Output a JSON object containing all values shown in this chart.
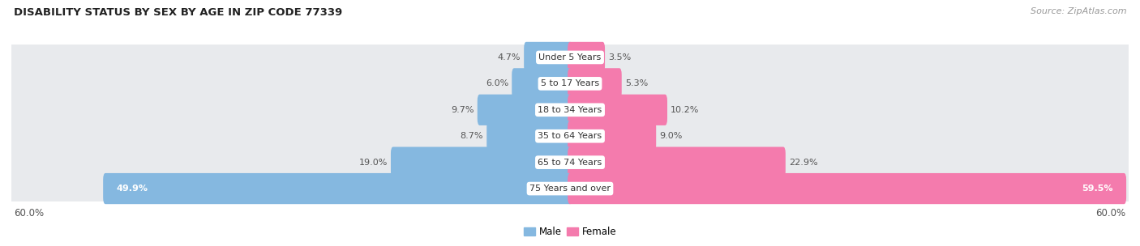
{
  "title": "DISABILITY STATUS BY SEX BY AGE IN ZIP CODE 77339",
  "source": "Source: ZipAtlas.com",
  "categories": [
    "Under 5 Years",
    "5 to 17 Years",
    "18 to 34 Years",
    "35 to 64 Years",
    "65 to 74 Years",
    "75 Years and over"
  ],
  "male_values": [
    4.7,
    6.0,
    9.7,
    8.7,
    19.0,
    49.9
  ],
  "female_values": [
    3.5,
    5.3,
    10.2,
    9.0,
    22.9,
    59.5
  ],
  "male_color": "#85b8e0",
  "female_color": "#f47bad",
  "row_bg_color": "#e8eaed",
  "bg_color": "#ffffff",
  "max_value": 60.0,
  "label_color": "#555555",
  "title_color": "#333333",
  "legend_male": "Male",
  "legend_female": "Female"
}
